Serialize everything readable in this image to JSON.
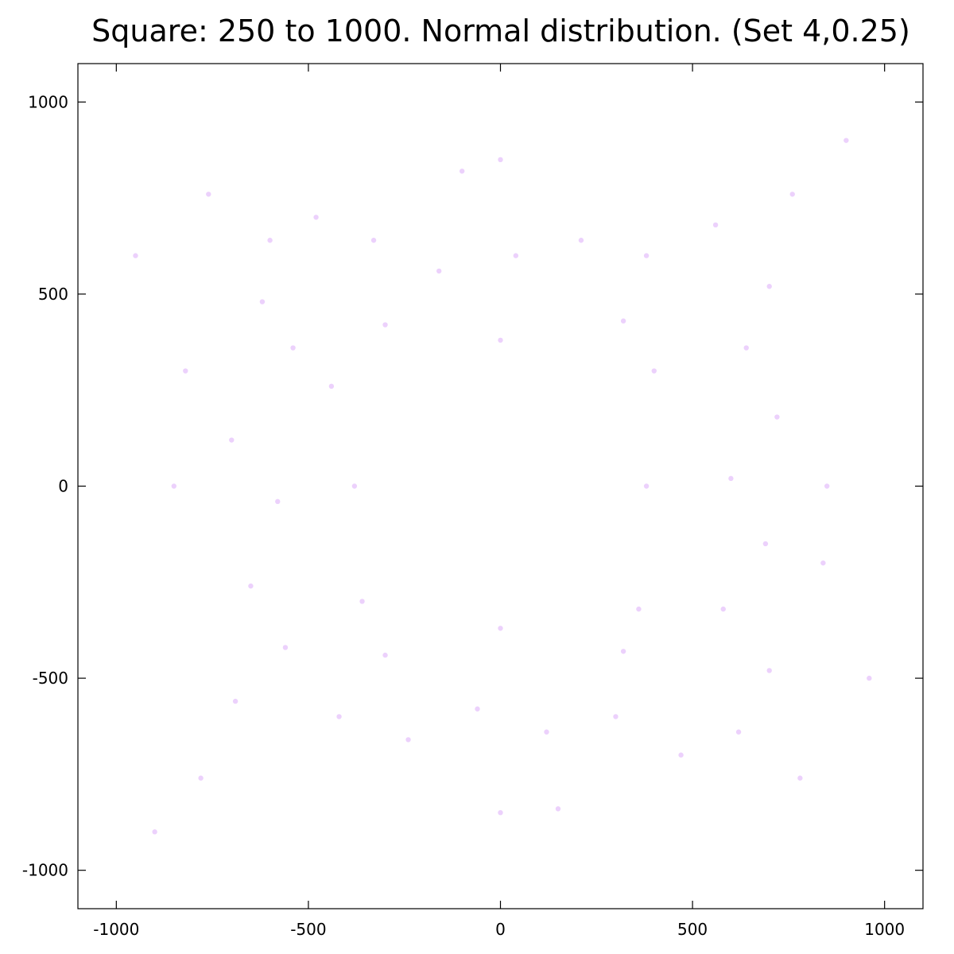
{
  "chart_data": {
    "type": "scatter",
    "title": "Square: 250 to 1000. Normal distribution. (Set 4,0.25)",
    "xlabel": "",
    "ylabel": "",
    "xlim": [
      -1100,
      1100
    ],
    "ylim": [
      -1100,
      1100
    ],
    "x_ticks": [
      -1000,
      -500,
      0,
      500,
      1000
    ],
    "y_ticks": [
      -1000,
      -500,
      0,
      500,
      1000
    ],
    "x_tick_labels": [
      "-1000",
      "-500",
      "0",
      "500",
      "1000"
    ],
    "y_tick_labels": [
      "-1000",
      "-500",
      "0",
      "500",
      "1000"
    ],
    "grid": false,
    "legend": "none",
    "point_color": "#9400f0",
    "point_opacity": 0.18,
    "series": [
      {
        "points": [
          [
            -620,
            480
          ],
          [
            -540,
            360
          ],
          [
            -700,
            120
          ],
          [
            -580,
            -40
          ],
          [
            -650,
            -260
          ],
          [
            -560,
            -420
          ],
          [
            -690,
            -560
          ],
          [
            -600,
            640
          ],
          [
            -480,
            700
          ],
          [
            -330,
            640
          ],
          [
            -160,
            560
          ],
          [
            40,
            600
          ],
          [
            210,
            640
          ],
          [
            380,
            600
          ],
          [
            560,
            680
          ],
          [
            700,
            520
          ],
          [
            640,
            360
          ],
          [
            720,
            180
          ],
          [
            600,
            20
          ],
          [
            690,
            -150
          ],
          [
            580,
            -320
          ],
          [
            700,
            -480
          ],
          [
            620,
            -640
          ],
          [
            470,
            -700
          ],
          [
            300,
            -600
          ],
          [
            120,
            -640
          ],
          [
            -60,
            -580
          ],
          [
            -240,
            -660
          ],
          [
            -420,
            -600
          ],
          [
            -760,
            760
          ],
          [
            760,
            760
          ],
          [
            -780,
            -760
          ],
          [
            780,
            -760
          ],
          [
            -300,
            420
          ],
          [
            -440,
            260
          ],
          [
            -360,
            -300
          ],
          [
            -300,
            -440
          ],
          [
            320,
            430
          ],
          [
            400,
            300
          ],
          [
            360,
            -320
          ],
          [
            320,
            -430
          ],
          [
            -820,
            300
          ],
          [
            840,
            -200
          ],
          [
            -100,
            820
          ],
          [
            150,
            -840
          ],
          [
            -900,
            -900
          ],
          [
            900,
            900
          ],
          [
            -950,
            600
          ],
          [
            960,
            -500
          ],
          [
            0,
            380
          ],
          [
            0,
            -370
          ],
          [
            -380,
            0
          ],
          [
            380,
            0
          ],
          [
            -850,
            0
          ],
          [
            850,
            0
          ],
          [
            0,
            850
          ],
          [
            0,
            -850
          ]
        ]
      }
    ]
  }
}
